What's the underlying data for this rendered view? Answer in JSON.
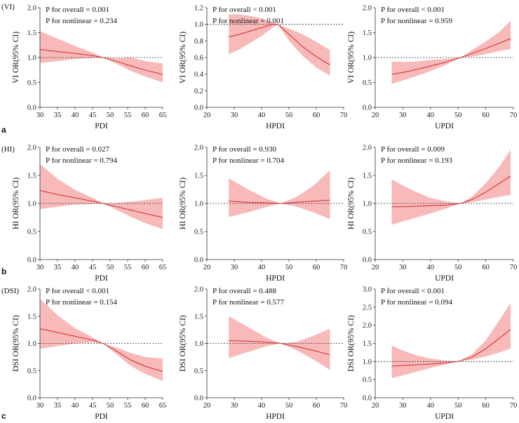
{
  "figure": {
    "rows": [
      {
        "row_label": "(VI)",
        "panel_label": "a"
      },
      {
        "row_label": "(HI)",
        "panel_label": "b"
      },
      {
        "row_label": "(DSI)",
        "panel_label": "c"
      }
    ]
  },
  "chart_data": [
    {
      "type": "line",
      "row": 0,
      "col": 0,
      "xlabel": "PDI",
      "ylabel": "VI OR(95% CI)",
      "xlim": [
        30,
        65
      ],
      "xticks": [
        30,
        35,
        40,
        45,
        50,
        55,
        60,
        65
      ],
      "ylim": [
        0,
        2
      ],
      "yticks": [
        "0.0",
        "0.5",
        "1.0",
        "1.5",
        "2.0"
      ],
      "annotations": [
        "P for overall = 0.001",
        "P for nonlinear = 0.234"
      ],
      "reference_y": 1.0,
      "series": {
        "name": "OR",
        "x": [
          30,
          35,
          40,
          45,
          48,
          52,
          56,
          60,
          65
        ],
        "or": [
          1.16,
          1.12,
          1.08,
          1.04,
          1.0,
          0.92,
          0.83,
          0.75,
          0.66
        ],
        "lower": [
          0.89,
          0.93,
          0.97,
          0.99,
          1.0,
          0.87,
          0.73,
          0.62,
          0.5
        ],
        "upper": [
          1.53,
          1.38,
          1.23,
          1.1,
          1.0,
          0.98,
          1.0,
          0.93,
          0.88
        ]
      }
    },
    {
      "type": "line",
      "row": 0,
      "col": 1,
      "xlabel": "HPDI",
      "ylabel": "VI OR(95% CI)",
      "xlim": [
        20,
        70
      ],
      "xticks": [
        20,
        30,
        40,
        50,
        60,
        70
      ],
      "ylim": [
        0,
        1.2
      ],
      "yticks": [
        "0.0",
        "0.2",
        "0.4",
        "0.6",
        "0.8",
        "1.0",
        "1.2"
      ],
      "annotations": [
        "P for overall < 0.001",
        "P for nonlinear = 0.001"
      ],
      "reference_y": 1.0,
      "series": {
        "name": "OR",
        "x": [
          28,
          32,
          36,
          40,
          44,
          46,
          50,
          55,
          60,
          65
        ],
        "or": [
          0.85,
          0.88,
          0.92,
          0.96,
          1.0,
          1.0,
          0.88,
          0.73,
          0.61,
          0.51
        ],
        "lower": [
          0.64,
          0.7,
          0.78,
          0.86,
          0.96,
          1.0,
          0.8,
          0.62,
          0.48,
          0.38
        ],
        "upper": [
          1.12,
          1.12,
          1.1,
          1.07,
          1.02,
          1.0,
          0.95,
          0.88,
          0.79,
          0.69
        ]
      }
    },
    {
      "type": "line",
      "row": 0,
      "col": 2,
      "xlabel": "UPDI",
      "ylabel": "VI OR(95% CI)",
      "xlim": [
        20,
        70
      ],
      "xticks": [
        20,
        30,
        40,
        50,
        60,
        70
      ],
      "ylim": [
        0,
        2
      ],
      "yticks": [
        "0.0",
        "0.5",
        "1.0",
        "1.5",
        "2.0"
      ],
      "annotations": [
        "P for overall < 0.001",
        "P for nonlinear = 0.959"
      ],
      "reference_y": 1.0,
      "series": {
        "name": "OR",
        "x": [
          26,
          30,
          35,
          40,
          45,
          51,
          55,
          60,
          65,
          69
        ],
        "or": [
          0.66,
          0.7,
          0.76,
          0.83,
          0.9,
          1.0,
          1.08,
          1.18,
          1.29,
          1.38
        ],
        "lower": [
          0.47,
          0.54,
          0.63,
          0.73,
          0.84,
          1.0,
          1.02,
          1.07,
          1.13,
          1.17
        ],
        "upper": [
          0.92,
          0.91,
          0.92,
          0.95,
          0.97,
          1.0,
          1.15,
          1.32,
          1.52,
          1.74
        ]
      }
    },
    {
      "type": "line",
      "row": 1,
      "col": 0,
      "xlabel": "PDI",
      "ylabel": "HI OR(95% CI)",
      "xlim": [
        30,
        65
      ],
      "xticks": [
        30,
        35,
        40,
        45,
        50,
        55,
        60,
        65
      ],
      "ylim": [
        0,
        2
      ],
      "yticks": [
        "0.0",
        "0.5",
        "1.0",
        "1.5",
        "2.0"
      ],
      "annotations": [
        "P for overall = 0.027",
        "P for nonlinear = 0.794"
      ],
      "reference_y": 1.0,
      "series": {
        "name": "OR",
        "x": [
          30,
          35,
          40,
          45,
          48,
          52,
          56,
          60,
          65
        ],
        "or": [
          1.23,
          1.16,
          1.1,
          1.04,
          1.0,
          0.94,
          0.88,
          0.82,
          0.75
        ],
        "lower": [
          0.9,
          0.94,
          0.98,
          0.99,
          1.0,
          0.88,
          0.76,
          0.65,
          0.54
        ],
        "upper": [
          1.7,
          1.44,
          1.24,
          1.1,
          1.0,
          1.01,
          1.03,
          1.06,
          1.1
        ]
      }
    },
    {
      "type": "line",
      "row": 1,
      "col": 1,
      "xlabel": "HPDI",
      "ylabel": "HI OR(95% CI)",
      "xlim": [
        20,
        70
      ],
      "xticks": [
        20,
        30,
        40,
        50,
        60,
        70
      ],
      "ylim": [
        0,
        2
      ],
      "yticks": [
        "0.0",
        "0.5",
        "1.0",
        "1.5",
        "2.0"
      ],
      "annotations": [
        "P for overall = 0.930",
        "P for nonlinear = 0.704"
      ],
      "reference_y": 1.0,
      "series": {
        "name": "OR",
        "x": [
          28,
          35,
          42,
          47,
          53,
          59,
          65
        ],
        "or": [
          1.04,
          1.02,
          1.01,
          1.0,
          1.02,
          1.04,
          1.06
        ],
        "lower": [
          0.76,
          0.84,
          0.94,
          1.0,
          0.94,
          0.84,
          0.72
        ],
        "upper": [
          1.45,
          1.25,
          1.08,
          1.0,
          1.12,
          1.32,
          1.59
        ]
      }
    },
    {
      "type": "line",
      "row": 1,
      "col": 2,
      "xlabel": "UPDI",
      "ylabel": "HI OR(95% CI)",
      "xlim": [
        20,
        70
      ],
      "xticks": [
        20,
        30,
        40,
        50,
        60,
        70
      ],
      "ylim": [
        0,
        2
      ],
      "yticks": [
        "0.0",
        "0.5",
        "1.0",
        "1.5",
        "2.0"
      ],
      "annotations": [
        "P for overall = 0.009",
        "P for nonlinear = 0.193"
      ],
      "reference_y": 1.0,
      "series": {
        "name": "OR",
        "x": [
          26,
          30,
          35,
          40,
          45,
          51,
          55,
          60,
          65,
          69
        ],
        "or": [
          0.94,
          0.94,
          0.95,
          0.96,
          0.97,
          1.0,
          1.07,
          1.2,
          1.36,
          1.49
        ],
        "lower": [
          0.62,
          0.68,
          0.75,
          0.82,
          0.9,
          1.0,
          1.02,
          1.07,
          1.12,
          1.15
        ],
        "upper": [
          1.43,
          1.32,
          1.2,
          1.1,
          1.04,
          1.0,
          1.12,
          1.36,
          1.66,
          1.96
        ]
      }
    },
    {
      "type": "line",
      "row": 2,
      "col": 0,
      "xlabel": "PDI",
      "ylabel": "DSI OR(95% CI)",
      "xlim": [
        30,
        65
      ],
      "xticks": [
        30,
        35,
        40,
        45,
        50,
        55,
        60,
        65
      ],
      "ylim": [
        0,
        2
      ],
      "yticks": [
        "0.0",
        "0.5",
        "1.0",
        "1.5",
        "2.0"
      ],
      "annotations": [
        "P for overall < 0.001",
        "P for nonlinear = 0.154"
      ],
      "reference_y": 1.0,
      "series": {
        "name": "OR",
        "x": [
          30,
          35,
          40,
          45,
          48,
          52,
          56,
          60,
          65
        ],
        "or": [
          1.27,
          1.2,
          1.13,
          1.06,
          1.0,
          0.85,
          0.69,
          0.58,
          0.48
        ],
        "lower": [
          0.9,
          0.95,
          1.0,
          1.02,
          1.0,
          0.79,
          0.58,
          0.44,
          0.31
        ],
        "upper": [
          1.82,
          1.52,
          1.28,
          1.11,
          1.0,
          0.92,
          0.82,
          0.75,
          0.72
        ]
      }
    },
    {
      "type": "line",
      "row": 2,
      "col": 1,
      "xlabel": "HPDI",
      "ylabel": "DSI OR(95% CI)",
      "xlim": [
        20,
        70
      ],
      "xticks": [
        20,
        30,
        40,
        50,
        60,
        70
      ],
      "ylim": [
        0,
        2
      ],
      "yticks": [
        "0.0",
        "0.5",
        "1.0",
        "1.5",
        "2.0"
      ],
      "annotations": [
        "P for overall = 0.488",
        "P for nonlinear = 0.577"
      ],
      "reference_y": 1.0,
      "series": {
        "name": "OR",
        "x": [
          28,
          35,
          42,
          47,
          53,
          59,
          65
        ],
        "or": [
          1.05,
          1.04,
          1.02,
          1.0,
          0.94,
          0.87,
          0.79
        ],
        "lower": [
          0.73,
          0.84,
          0.95,
          1.0,
          0.87,
          0.7,
          0.51
        ],
        "upper": [
          1.5,
          1.3,
          1.1,
          1.0,
          1.03,
          1.14,
          1.27
        ]
      }
    },
    {
      "type": "line",
      "row": 2,
      "col": 2,
      "xlabel": "UPDI",
      "ylabel": "DSI OR(95% CI)",
      "xlim": [
        20,
        70
      ],
      "xticks": [
        20,
        30,
        40,
        50,
        60,
        70
      ],
      "ylim": [
        0,
        3
      ],
      "yticks": [
        "0.0",
        "0.5",
        "1.0",
        "1.5",
        "2.0",
        "2.5",
        "3.0"
      ],
      "annotations": [
        "P for overall < 0.001",
        "P for nonlinear = 0.094"
      ],
      "reference_y": 1.0,
      "series": {
        "name": "OR",
        "x": [
          26,
          30,
          35,
          40,
          45,
          50,
          55,
          60,
          65,
          69
        ],
        "or": [
          0.87,
          0.89,
          0.91,
          0.93,
          0.96,
          1.0,
          1.12,
          1.35,
          1.65,
          1.88
        ],
        "lower": [
          0.54,
          0.62,
          0.72,
          0.82,
          0.91,
          1.0,
          1.05,
          1.14,
          1.25,
          1.36
        ],
        "upper": [
          1.44,
          1.3,
          1.17,
          1.08,
          1.03,
          1.0,
          1.2,
          1.58,
          2.15,
          2.62
        ]
      }
    }
  ]
}
